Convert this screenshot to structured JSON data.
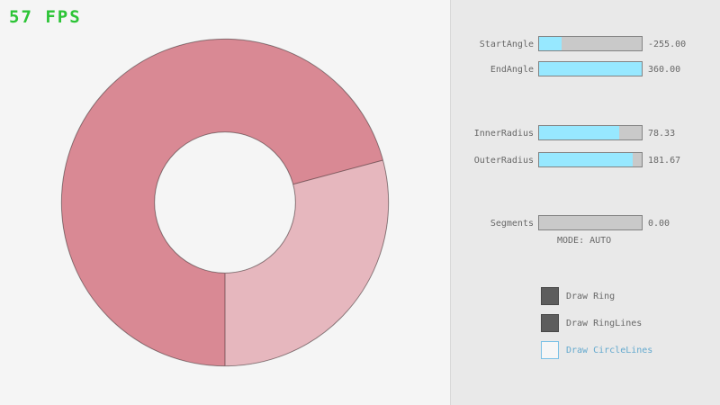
{
  "fps": "57 FPS",
  "colors": {
    "fps_green": "#2cc436",
    "background": "#f5f5f5",
    "panel_bg": "#e9e9e9",
    "ring_dark": "#d98994",
    "ring_light": "#e6b7be",
    "ring_line": "rgba(0,0,0,0.42)",
    "slider_fill": "#97e8ff",
    "slider_bg": "#c9c9c9",
    "slider_border": "#838383",
    "text_gray": "#686868",
    "checkbox_dark": "#5d5d5d",
    "checkbox_blue_border": "#7ac1e6",
    "checkbox_blue_text": "#64a9ce"
  },
  "ring": {
    "inner_radius": 78.33,
    "outer_radius": 181.67,
    "start_angle": -255,
    "end_angle": 360,
    "single_layer_arc_deg": [
      -15,
      90
    ]
  },
  "panel": {
    "sliders": [
      {
        "label": "StartAngle",
        "value": "-255.00",
        "fill_pct": 21.7
      },
      {
        "label": "EndAngle",
        "value": "360.00",
        "fill_pct": 100
      },
      {
        "label": "InnerRadius",
        "value": "78.33",
        "fill_pct": 78.3
      },
      {
        "label": "OuterRadius",
        "value": "181.67",
        "fill_pct": 90.8
      },
      {
        "label": "Segments",
        "value": "0.00",
        "fill_pct": 0
      }
    ],
    "mode_label": "MODE: AUTO",
    "checkboxes": [
      {
        "label": "Draw Ring",
        "checked": true
      },
      {
        "label": "Draw RingLines",
        "checked": true
      },
      {
        "label": "Draw CircleLines",
        "checked": false
      }
    ]
  }
}
